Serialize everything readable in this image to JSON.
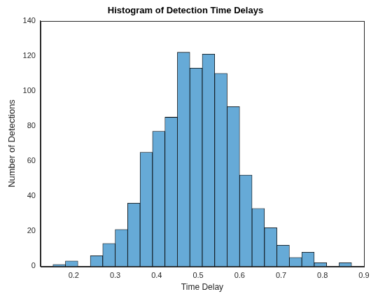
{
  "chart_data": {
    "type": "histogram",
    "title": "Histogram of Detection Time Delays",
    "x_label": "Time Delay",
    "y_label": "Number of Detections",
    "bins": [
      0.15,
      0.18,
      0.21,
      0.24,
      0.27,
      0.3,
      0.33,
      0.36,
      0.39,
      0.42,
      0.45,
      0.48,
      0.51,
      0.54,
      0.57,
      0.6,
      0.63,
      0.66,
      0.69,
      0.72,
      0.75,
      0.78,
      0.81,
      0.84,
      0.87
    ],
    "values": [
      1,
      3,
      0,
      6,
      13,
      21,
      36,
      65,
      77,
      85,
      122,
      113,
      121,
      110,
      91,
      52,
      33,
      22,
      12,
      5,
      8,
      2,
      0,
      2
    ],
    "color": "#66aad7",
    "xlim": [
      0.12,
      0.9
    ],
    "xticks": [
      0.2,
      0.3,
      0.4,
      0.5,
      0.6,
      0.7,
      0.8,
      0.9
    ],
    "ylim": [
      0,
      140
    ],
    "yticks": [
      0,
      20,
      40,
      60,
      80,
      100,
      120,
      140
    ],
    "grid": false
  }
}
